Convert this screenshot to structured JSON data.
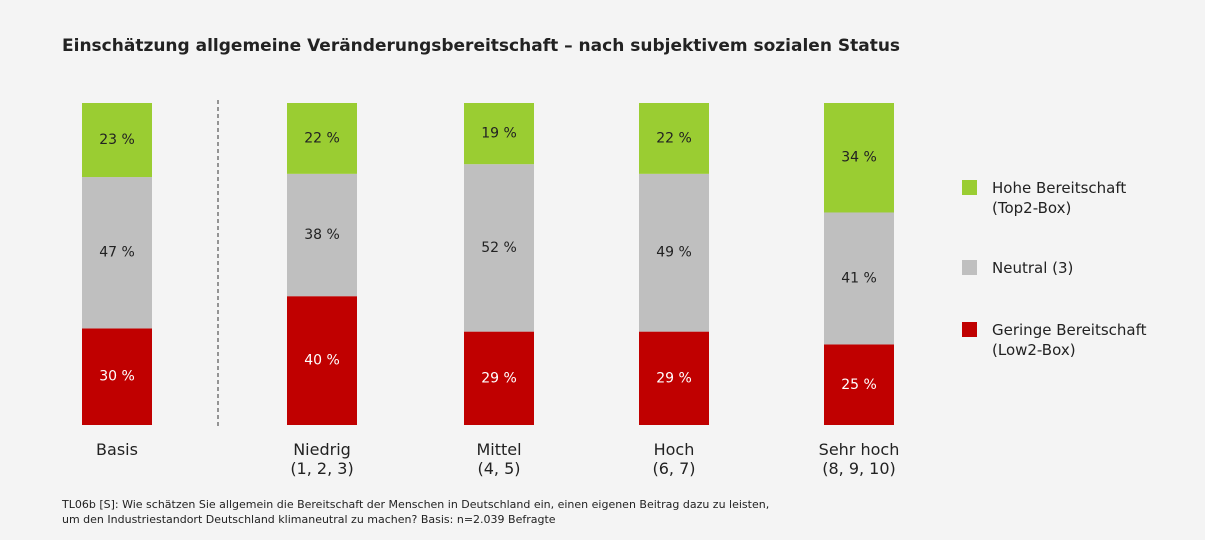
{
  "chart_data": {
    "type": "stacked_bar",
    "title": "Einschätzung allgemeine Veränderungsbereitschaft – nach subjektivem sozialen Status",
    "categories": [
      "Basis",
      "Niedrig\n(1, 2, 3)",
      "Mittel\n(4, 5)",
      "Hoch\n(6, 7)",
      "Sehr hoch\n(8, 9, 10)"
    ],
    "series": [
      {
        "name": "Hohe Bereitschaft\n(Top2-Box)",
        "color": "#9acd32",
        "values": [
          23,
          22,
          19,
          22,
          34
        ],
        "value_labels": [
          "23 %",
          "22 %",
          "19 %",
          "22 %",
          "34 %"
        ]
      },
      {
        "name": "Neutral (3)",
        "color": "#bfbfbf",
        "values": [
          47,
          38,
          52,
          49,
          41
        ],
        "value_labels": [
          "47 %",
          "38 %",
          "52 %",
          "49 %",
          "41 %"
        ]
      },
      {
        "name": "Geringe Bereitschaft\n(Low2-Box)",
        "color": "#c00000",
        "values": [
          30,
          40,
          29,
          29,
          25
        ],
        "value_labels": [
          "30 %",
          "40 %",
          "29 %",
          "29 %",
          "25 %"
        ]
      }
    ],
    "ylim": [
      0,
      100
    ],
    "footnote": "TL06b [S]: Wie schätzen Sie allgemein die Bereitschaft der Menschen in Deutschland ein, einen eigenen Beitrag dazu zu leisten,\num den Industriestandort Deutschland klimaneutral zu machen? Basis: n=2.039 Befragte"
  }
}
